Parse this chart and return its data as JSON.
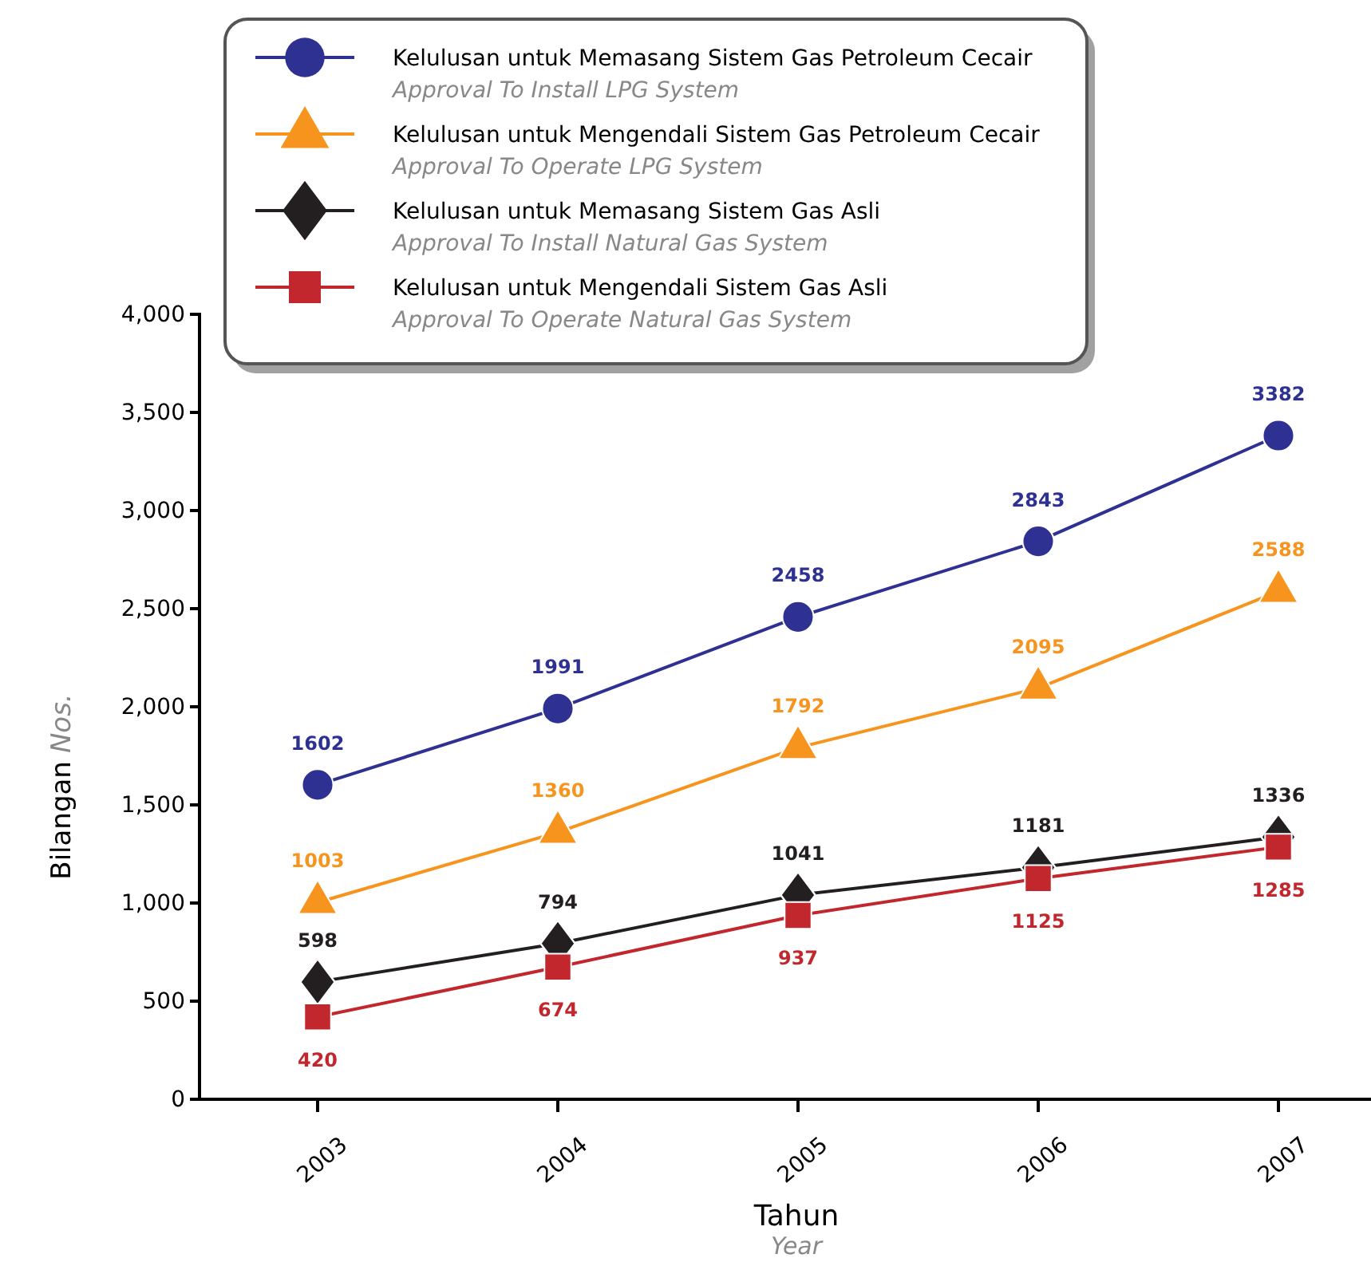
{
  "chart_data": {
    "type": "line",
    "xlabel": "Tahun\nYear",
    "ylabel": "Bilangan\nNos.",
    "categories": [
      "2003",
      "2004",
      "2005",
      "2006",
      "2007"
    ],
    "ylim": [
      0,
      4000
    ],
    "yticks": [
      {
        "value": 0,
        "label": "0"
      },
      {
        "value": 500,
        "label": "500"
      },
      {
        "value": 1000,
        "label": "1,000"
      },
      {
        "value": 1500,
        "label": "1,500"
      },
      {
        "value": 2000,
        "label": "2,000"
      },
      {
        "value": 2500,
        "label": "2,500"
      },
      {
        "value": 3000,
        "label": "3,000"
      },
      {
        "value": 3500,
        "label": "3,500"
      },
      {
        "value": 4000,
        "label": "4,000"
      }
    ],
    "grid": false,
    "legend": "top",
    "data_labels": true,
    "line_style": "solid",
    "series": [
      {
        "name": "Kelulusan untuk Memasang Sistem Gas Petroleum Cecair\nApproval To Install LPG System",
        "color": "#2e3192",
        "marker": "circle",
        "values": [
          1602,
          1991,
          2458,
          2843,
          3382
        ]
      },
      {
        "name": "Kelulusan untuk Mengendali Sistem Gas Petroleum Cecair\nApproval To Operate LPG System",
        "color": "#f7941d",
        "marker": "triangle",
        "values": [
          1003,
          1360,
          1792,
          2095,
          2588
        ]
      },
      {
        "name": "Kelulusan untuk Memasang Sistem Gas Asli\nApproval To Install Natural Gas System",
        "color": "#231f20",
        "marker": "diamond",
        "values": [
          598,
          794,
          1041,
          1181,
          1336
        ]
      },
      {
        "name": "Kelulusan untuk Mengendali Sistem Gas Asli\nApproval To Operate Natural Gas System",
        "color": "#c1272d",
        "marker": "square",
        "values": [
          420,
          674,
          937,
          1125,
          1285
        ]
      }
    ]
  }
}
